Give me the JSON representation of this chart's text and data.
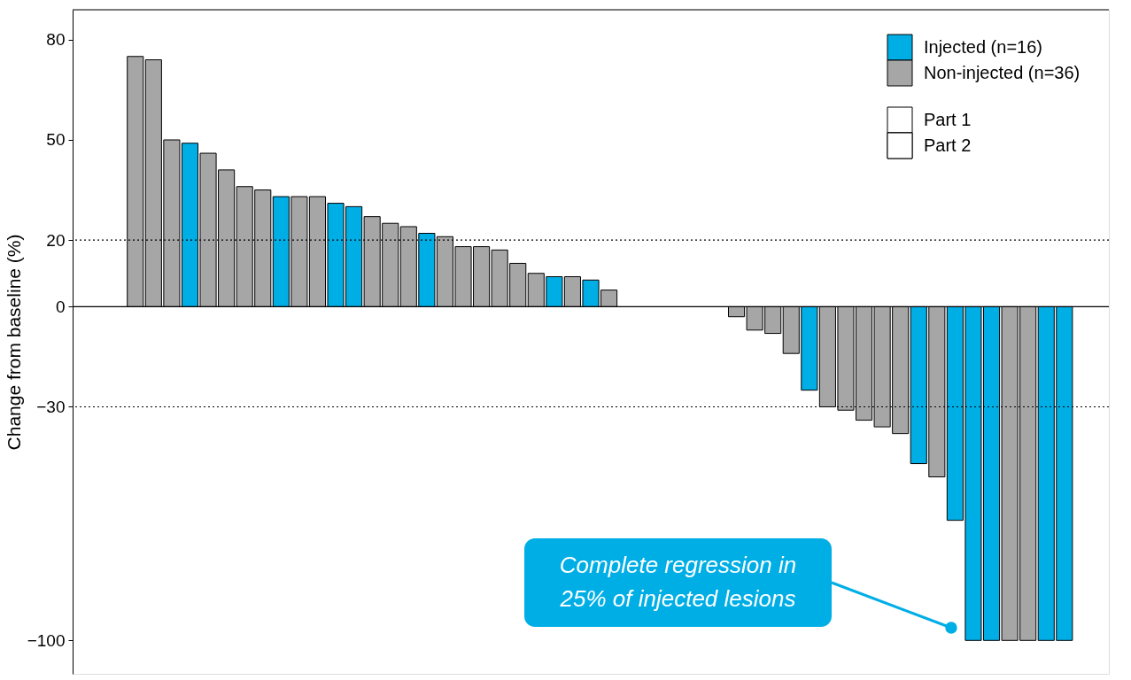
{
  "chart_data": {
    "type": "bar",
    "ylabel": "Change from baseline (%)",
    "categories": [
      null,
      null,
      null,
      null,
      null,
      null,
      null,
      null,
      null,
      null,
      null,
      null,
      null,
      null,
      null,
      null,
      null,
      null,
      null,
      null,
      null,
      null,
      null,
      null,
      null,
      null,
      null,
      null,
      null,
      null,
      null,
      null,
      null,
      null,
      null,
      null,
      null,
      null,
      null,
      null,
      null,
      null,
      null,
      null,
      null,
      null,
      null,
      null,
      null,
      null,
      null,
      null,
      null,
      null,
      null,
      null,
      null
    ],
    "series": [
      {
        "name": "Injected (n=16)",
        "color": "#00aee6",
        "values": [
          null,
          null,
          null,
          null,
          null,
          null,
          49,
          null,
          null,
          null,
          null,
          33,
          null,
          null,
          null,
          30,
          null,
          null,
          null,
          22,
          null,
          null,
          null,
          null,
          null,
          null,
          9,
          null,
          null,
          null,
          null,
          null,
          null,
          null,
          null,
          null,
          null,
          null,
          null,
          null,
          null,
          null,
          null,
          null,
          null,
          null,
          -47,
          null,
          null,
          -100,
          null,
          null,
          null,
          null,
          -100,
          null,
          null
        ]
      },
      {
        "name": "Non-injected (n=36)",
        "color": "#a6a6a6",
        "values": [
          null,
          null,
          null,
          null,
          null,
          50,
          null,
          null,
          null,
          36,
          null,
          null,
          null,
          null,
          null,
          null,
          null,
          null,
          null,
          null,
          21,
          null,
          null,
          17,
          null,
          10,
          null,
          null,
          null,
          null,
          null,
          null,
          null,
          null,
          null,
          null,
          null,
          -7,
          null,
          null,
          null,
          null,
          -31,
          null,
          null,
          null,
          null,
          null,
          null,
          null,
          null,
          null,
          null,
          null,
          null,
          null,
          null
        ]
      },
      {
        "color": "#00aee6",
        "values": [
          null,
          null,
          null,
          null,
          null,
          null,
          null,
          null,
          null,
          null,
          null,
          null,
          null,
          null,
          31,
          null,
          null,
          null,
          null,
          null,
          null,
          null,
          null,
          null,
          null,
          null,
          null,
          null,
          8,
          null,
          null,
          null,
          null,
          null,
          null,
          null,
          null,
          null,
          null,
          null,
          -25,
          null,
          null,
          null,
          null,
          null,
          null,
          null,
          -64,
          null,
          -100,
          null,
          null,
          -100,
          null,
          null,
          null
        ]
      },
      {
        "color": "#a6a6a6",
        "values": [
          null,
          null,
          null,
          75,
          74,
          null,
          null,
          46,
          41,
          null,
          35,
          null,
          33,
          33,
          null,
          null,
          27,
          25,
          24,
          null,
          null,
          18,
          18,
          null,
          13,
          null,
          null,
          9,
          null,
          5,
          null,
          null,
          null,
          null,
          null,
          null,
          -3,
          null,
          -8,
          -14,
          null,
          -30,
          null,
          -34,
          -36,
          -38,
          null,
          -51,
          null,
          null,
          null,
          -100,
          -100,
          null,
          null,
          null,
          null
        ]
      }
    ],
    "ylim": [
      -110,
      89
    ],
    "yticks": [
      80,
      50,
      20,
      0,
      -30,
      -100
    ],
    "ref_lines": [
      {
        "axis": "y",
        "value": 20,
        "line_style": "dotted",
        "color": "#000000"
      },
      {
        "axis": "y",
        "value": -30,
        "line_style": "dotted",
        "color": "#000000"
      },
      {
        "axis": "y",
        "value": 0,
        "line_style": "solid",
        "color": "#000000"
      }
    ],
    "annotations": [
      "Complete regression in 25% of injected lesions",
      "Part 1",
      "Part 2"
    ],
    "legend": "top right"
  }
}
